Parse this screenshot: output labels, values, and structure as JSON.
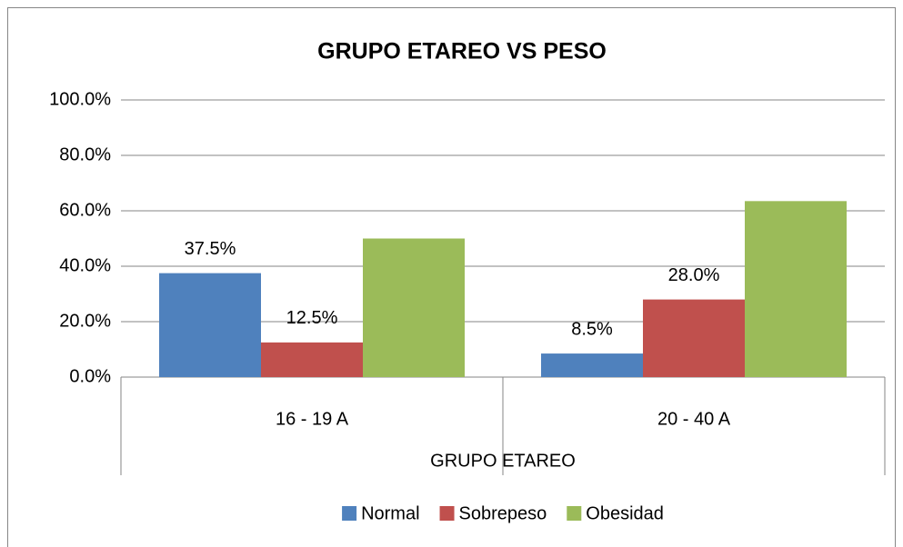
{
  "chart_data": {
    "type": "bar",
    "title": "GRUPO ETAREO VS PESO",
    "x_label": "GRUPO ETAREO",
    "categories": [
      "16 - 19 A",
      "20 - 40 A"
    ],
    "series": [
      {
        "name": "Normal",
        "color": "#4f81bd",
        "values": [
          37.5,
          8.5
        ],
        "value_labels": [
          "37.5%",
          "8.5%"
        ]
      },
      {
        "name": "Sobrepeso",
        "color": "#c0504d",
        "values": [
          12.5,
          28.0
        ],
        "value_labels": [
          "12.5%",
          "28.0%"
        ]
      },
      {
        "name": "Obesidad",
        "color": "#9bbb59",
        "values": [
          50,
          63.5
        ]
      }
    ],
    "ylim": [
      0,
      100
    ],
    "yticks": [
      {
        "value": 0,
        "label": "0.0%"
      },
      {
        "value": 20,
        "label": "20.0%"
      },
      {
        "value": 40,
        "label": "40.0%"
      },
      {
        "value": 60,
        "label": "60.0%"
      },
      {
        "value": 80,
        "label": "80.0%"
      },
      {
        "value": 100,
        "label": "100.0%"
      }
    ],
    "grid": true,
    "legend": "bottom"
  }
}
